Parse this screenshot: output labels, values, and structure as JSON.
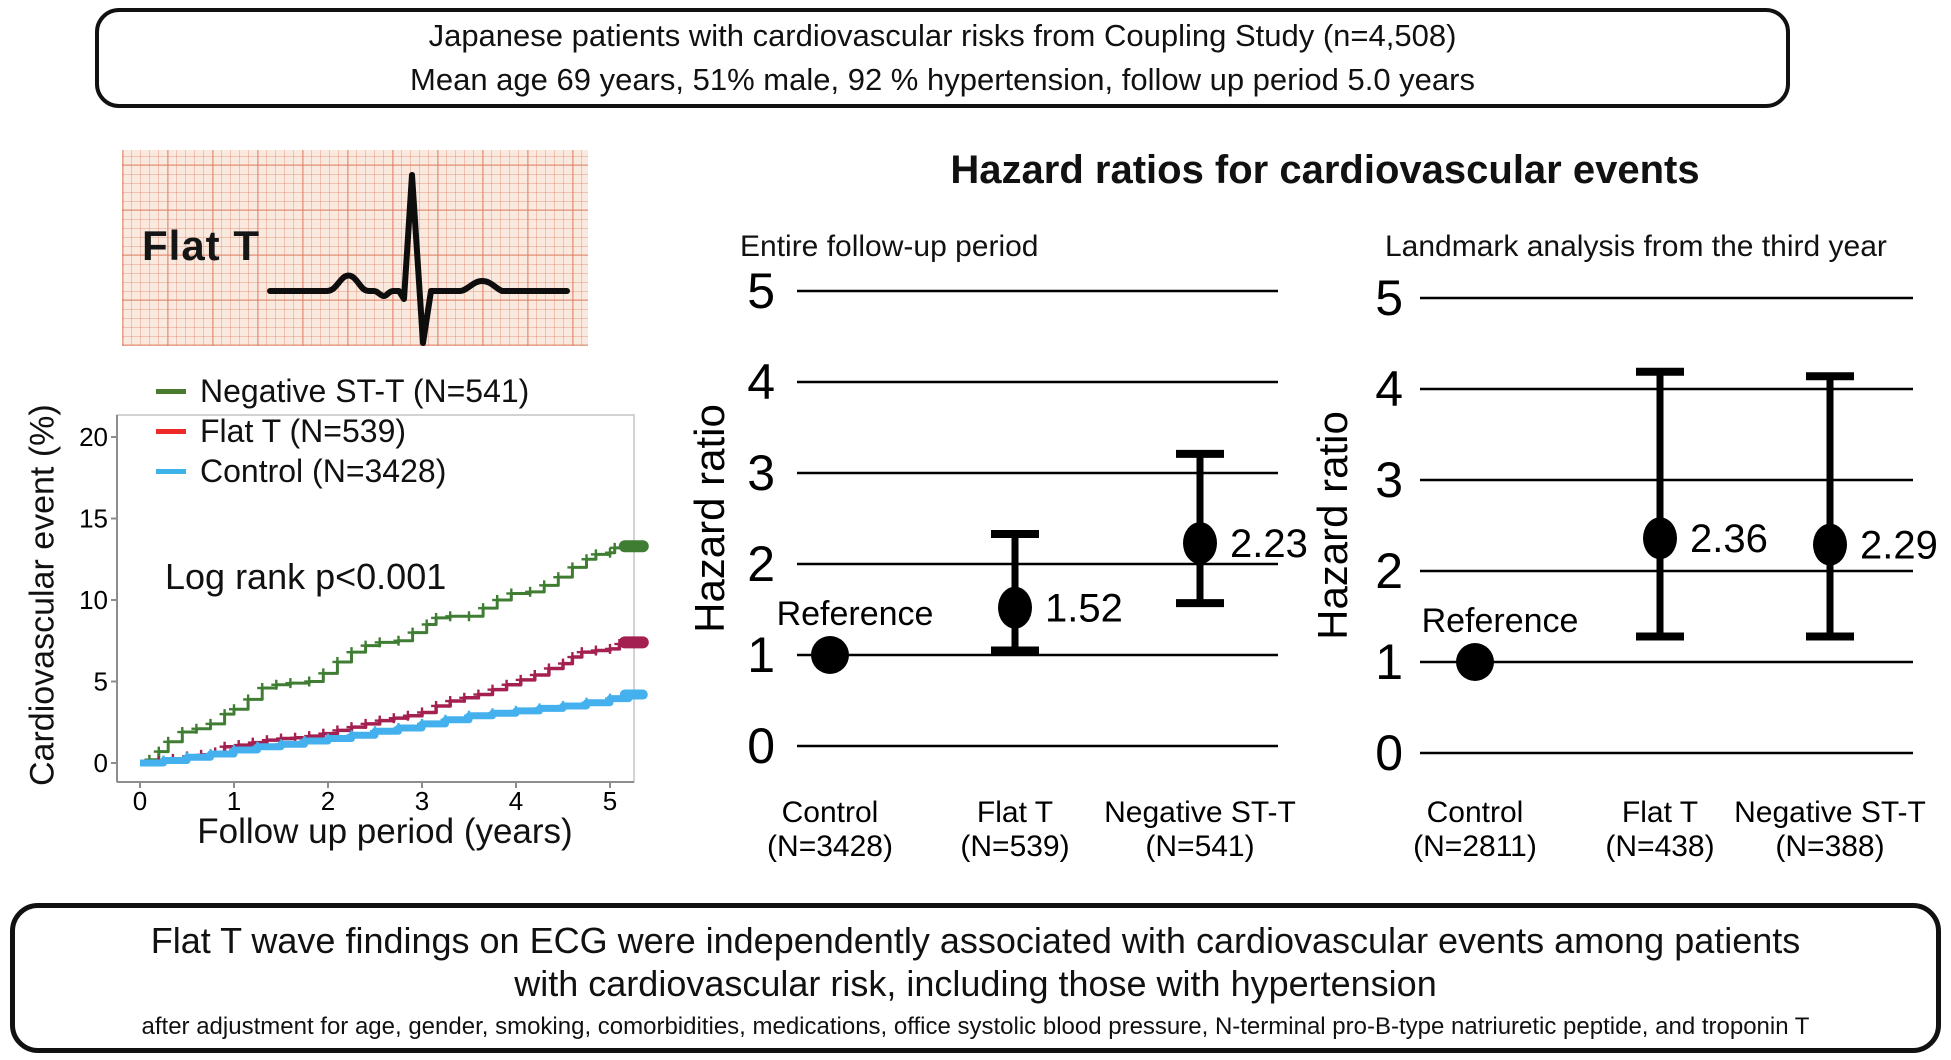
{
  "top_box": {
    "line1": "Japanese patients with cardiovascular risks from Coupling Study (n=4,508)",
    "line2": "Mean age 69 years, 51% male, 92 % hypertension, follow up period 5.0 years"
  },
  "ecg_panel": {
    "label": "Flat T"
  },
  "hr_section_title": "Hazard ratios for cardiovascular events",
  "bottom_box": {
    "line1": "Flat T wave findings on ECG were independently associated with cardiovascular events among patients",
    "line2": "with cardiovascular risk, including those with hypertension",
    "line3": "after adjustment for age, gender, smoking, comorbidities, medications, office systolic blood pressure, N-terminal pro-B-type natriuretic peptide, and troponin T"
  },
  "colors": {
    "negative_stt_curve": "#3f7d33",
    "flat_t_curve": "#a32050",
    "flat_t_legend_swatch": "#ee2a26",
    "negative_stt_legend_swatch": "#4a7a2e",
    "control_curve": "#45b0ee",
    "control_legend_swatch": "#3eb3ea",
    "hr_marks": "#000000"
  },
  "chart_data": [
    {
      "id": "km_curves",
      "type": "line",
      "title": "",
      "xlabel": "Follow up period (years)",
      "ylabel": "Cardiovascular event (%)",
      "annotation": "Log rank p<0.001",
      "xlim": [
        0,
        5.3
      ],
      "ylim": [
        0,
        22
      ],
      "xticks": [
        0,
        1,
        2,
        3,
        4,
        5
      ],
      "yticks": [
        0,
        5,
        10,
        15,
        20
      ],
      "grid": false,
      "legend_position": "top-left",
      "series": [
        {
          "name": "Negative ST-T (N=541)",
          "color": "#3f7d33",
          "swatch": "#4a7a2e",
          "points": [
            [
              0,
              0
            ],
            [
              0.1,
              0.2
            ],
            [
              0.2,
              0.7
            ],
            [
              0.3,
              1.3
            ],
            [
              0.45,
              1.9
            ],
            [
              0.6,
              2.1
            ],
            [
              0.75,
              2.4
            ],
            [
              0.9,
              3.0
            ],
            [
              1.0,
              3.3
            ],
            [
              1.15,
              3.9
            ],
            [
              1.3,
              4.6
            ],
            [
              1.45,
              4.8
            ],
            [
              1.6,
              4.9
            ],
            [
              1.8,
              5.0
            ],
            [
              1.95,
              5.5
            ],
            [
              2.1,
              6.2
            ],
            [
              2.25,
              6.8
            ],
            [
              2.4,
              7.2
            ],
            [
              2.55,
              7.4
            ],
            [
              2.75,
              7.5
            ],
            [
              2.9,
              8.0
            ],
            [
              3.05,
              8.5
            ],
            [
              3.15,
              8.9
            ],
            [
              3.3,
              9.0
            ],
            [
              3.5,
              9.0
            ],
            [
              3.65,
              9.5
            ],
            [
              3.8,
              10.0
            ],
            [
              3.95,
              10.4
            ],
            [
              4.15,
              10.5
            ],
            [
              4.3,
              10.9
            ],
            [
              4.45,
              11.4
            ],
            [
              4.6,
              12.0
            ],
            [
              4.75,
              12.5
            ],
            [
              4.85,
              12.8
            ],
            [
              5.0,
              12.9
            ],
            [
              5.05,
              13.2
            ],
            [
              5.2,
              13.3
            ]
          ]
        },
        {
          "name": "Flat T (N=539)",
          "color": "#a32050",
          "swatch": "#ee2a26",
          "points": [
            [
              0,
              0
            ],
            [
              0.2,
              0.1
            ],
            [
              0.35,
              0.25
            ],
            [
              0.5,
              0.4
            ],
            [
              0.65,
              0.5
            ],
            [
              0.8,
              0.65
            ],
            [
              0.9,
              1.0
            ],
            [
              1.05,
              1.1
            ],
            [
              1.2,
              1.25
            ],
            [
              1.35,
              1.4
            ],
            [
              1.5,
              1.5
            ],
            [
              1.65,
              1.55
            ],
            [
              1.8,
              1.65
            ],
            [
              1.95,
              1.8
            ],
            [
              2.1,
              2.0
            ],
            [
              2.25,
              2.2
            ],
            [
              2.4,
              2.4
            ],
            [
              2.55,
              2.6
            ],
            [
              2.7,
              2.75
            ],
            [
              2.85,
              2.9
            ],
            [
              3.0,
              3.1
            ],
            [
              3.15,
              3.5
            ],
            [
              3.3,
              3.8
            ],
            [
              3.45,
              4.0
            ],
            [
              3.6,
              4.2
            ],
            [
              3.75,
              4.5
            ],
            [
              3.9,
              4.8
            ],
            [
              4.05,
              5.1
            ],
            [
              4.2,
              5.4
            ],
            [
              4.35,
              5.8
            ],
            [
              4.5,
              6.1
            ],
            [
              4.6,
              6.5
            ],
            [
              4.7,
              6.8
            ],
            [
              4.85,
              6.9
            ],
            [
              5.0,
              7.0
            ],
            [
              5.1,
              7.3
            ],
            [
              5.2,
              7.4
            ]
          ]
        },
        {
          "name": "Control (N=3428)",
          "color": "#45b0ee",
          "swatch": "#3eb3ea",
          "points": [
            [
              0,
              0
            ],
            [
              0.25,
              0.15
            ],
            [
              0.5,
              0.35
            ],
            [
              0.75,
              0.55
            ],
            [
              1.0,
              0.8
            ],
            [
              1.25,
              1.0
            ],
            [
              1.5,
              1.15
            ],
            [
              1.75,
              1.35
            ],
            [
              2.0,
              1.5
            ],
            [
              2.25,
              1.7
            ],
            [
              2.5,
              1.95
            ],
            [
              2.75,
              2.15
            ],
            [
              3.0,
              2.4
            ],
            [
              3.25,
              2.65
            ],
            [
              3.5,
              2.9
            ],
            [
              3.75,
              3.05
            ],
            [
              4.0,
              3.2
            ],
            [
              4.25,
              3.35
            ],
            [
              4.5,
              3.5
            ],
            [
              4.75,
              3.7
            ],
            [
              5.0,
              3.95
            ],
            [
              5.2,
              4.2
            ]
          ]
        }
      ]
    },
    {
      "id": "hr_entire",
      "type": "scatter",
      "subtitle": "Entire follow-up period",
      "ylabel": "Hazard ratio",
      "ylim": [
        0,
        5
      ],
      "yticks": [
        0,
        1,
        2,
        3,
        4,
        5
      ],
      "reference_label": "Reference",
      "points": [
        {
          "category": "Control",
          "n": "(N=3428)",
          "value": 1,
          "reference": true
        },
        {
          "category": "Flat T",
          "n": "(N=539)",
          "value": 1.52,
          "label": "1.52",
          "ci_low": 1.05,
          "ci_high": 2.33
        },
        {
          "category": "Negative ST-T",
          "n": "(N=541)",
          "value": 2.23,
          "label": "2.23",
          "ci_low": 1.57,
          "ci_high": 3.21
        }
      ]
    },
    {
      "id": "hr_landmark",
      "type": "scatter",
      "subtitle": "Landmark analysis from the third year",
      "ylabel": "Hazard ratio",
      "ylim": [
        0,
        5
      ],
      "yticks": [
        0,
        1,
        2,
        3,
        4,
        5
      ],
      "reference_label": "Reference",
      "points": [
        {
          "category": "Control",
          "n": "(N=2811)",
          "value": 1,
          "reference": true
        },
        {
          "category": "Flat T",
          "n": "(N=438)",
          "value": 2.36,
          "label": "2.36",
          "ci_low": 1.28,
          "ci_high": 4.19
        },
        {
          "category": "Negative ST-T",
          "n": "(N=388)",
          "value": 2.29,
          "label": "2.29",
          "ci_low": 1.28,
          "ci_high": 4.14
        }
      ]
    }
  ]
}
